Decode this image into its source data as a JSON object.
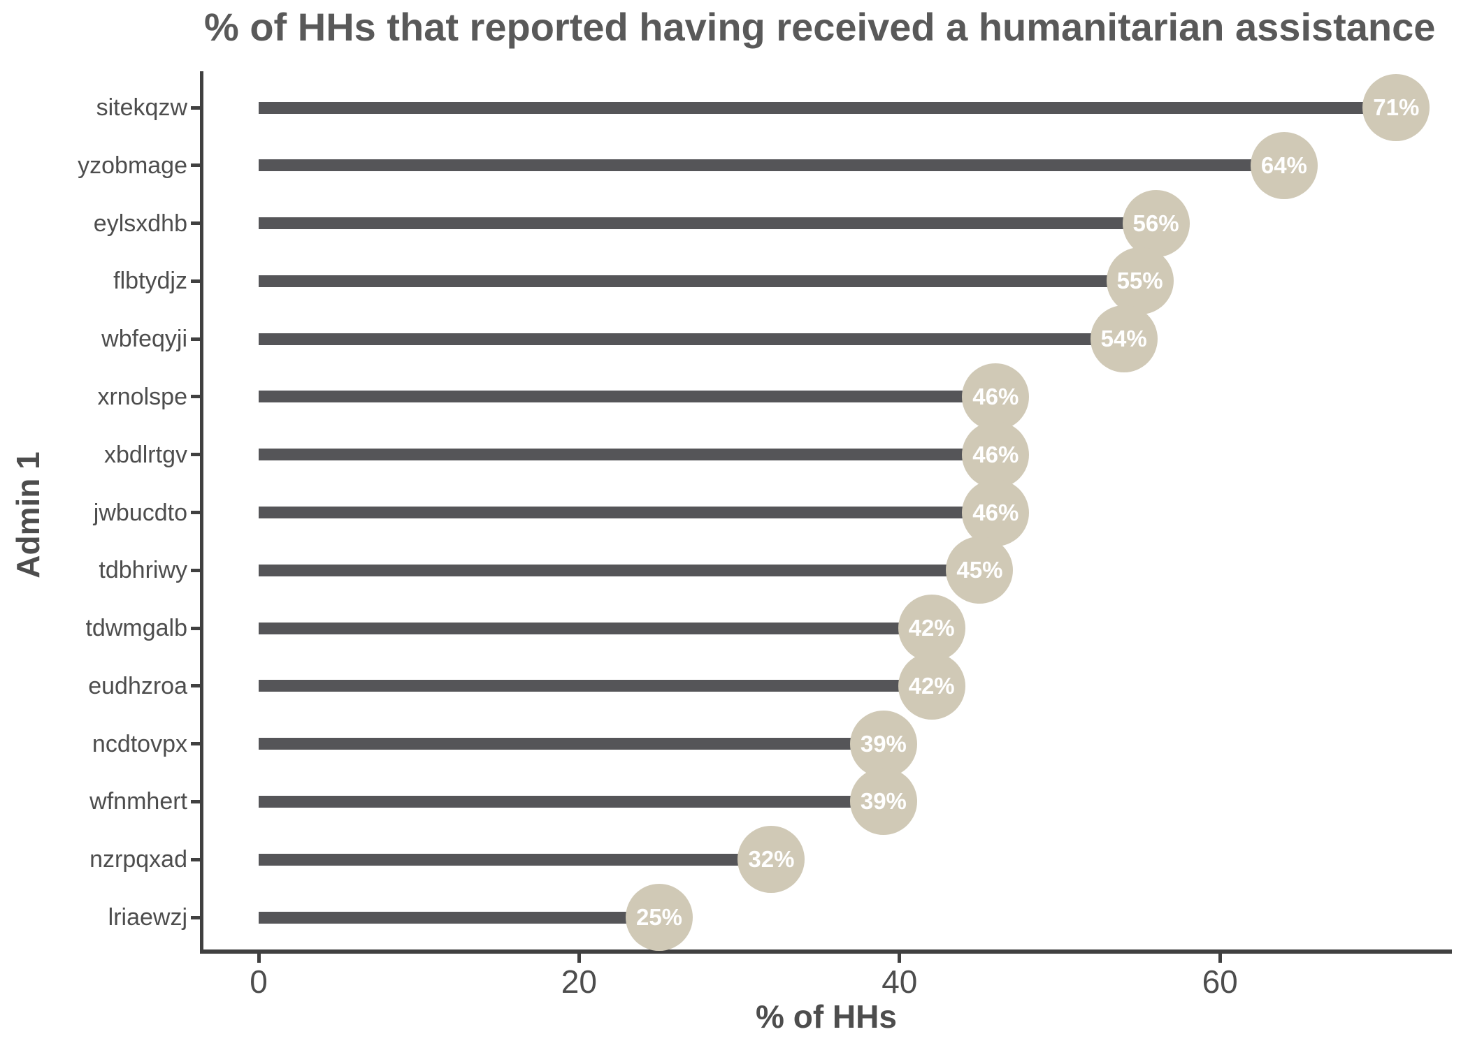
{
  "chart_data": {
    "type": "bar",
    "variant": "horizontal-lollipop",
    "title": "% of HHs that reported having received a humanitarian assistance",
    "xlabel": "% of HHs",
    "ylabel": "Admin 1",
    "categories": [
      "sitekqzw",
      "yzobmage",
      "eylsxdhb",
      "flbtydjz",
      "wbfeqyji",
      "xrnolspe",
      "xbdlrtgv",
      "jwbucdto",
      "tdbhriwy",
      "tdwmgalb",
      "eudhzroa",
      "ncdtovpx",
      "wfnmhert",
      "nzrpqxad",
      "lriaewzj"
    ],
    "values": [
      71,
      64,
      56,
      55,
      54,
      46,
      46,
      46,
      45,
      42,
      42,
      39,
      39,
      32,
      25
    ],
    "value_labels": [
      "71%",
      "64%",
      "56%",
      "55%",
      "54%",
      "46%",
      "46%",
      "46%",
      "45%",
      "42%",
      "42%",
      "39%",
      "39%",
      "32%",
      "25%"
    ],
    "x_ticks": [
      0,
      20,
      40,
      60
    ],
    "x_tick_labels": [
      "0",
      "20",
      "40",
      "60"
    ],
    "xlim": [
      0,
      74.5
    ],
    "grid": false,
    "legend": false,
    "orientation": "horizontal"
  },
  "colors": {
    "bar": "#555558",
    "circle_fill": "#d0c9b6",
    "circle_text": "#ffffff",
    "axis_line": "#404040",
    "axis_text": "#4d4d4d",
    "title_text": "#595959",
    "background": "#ffffff"
  }
}
